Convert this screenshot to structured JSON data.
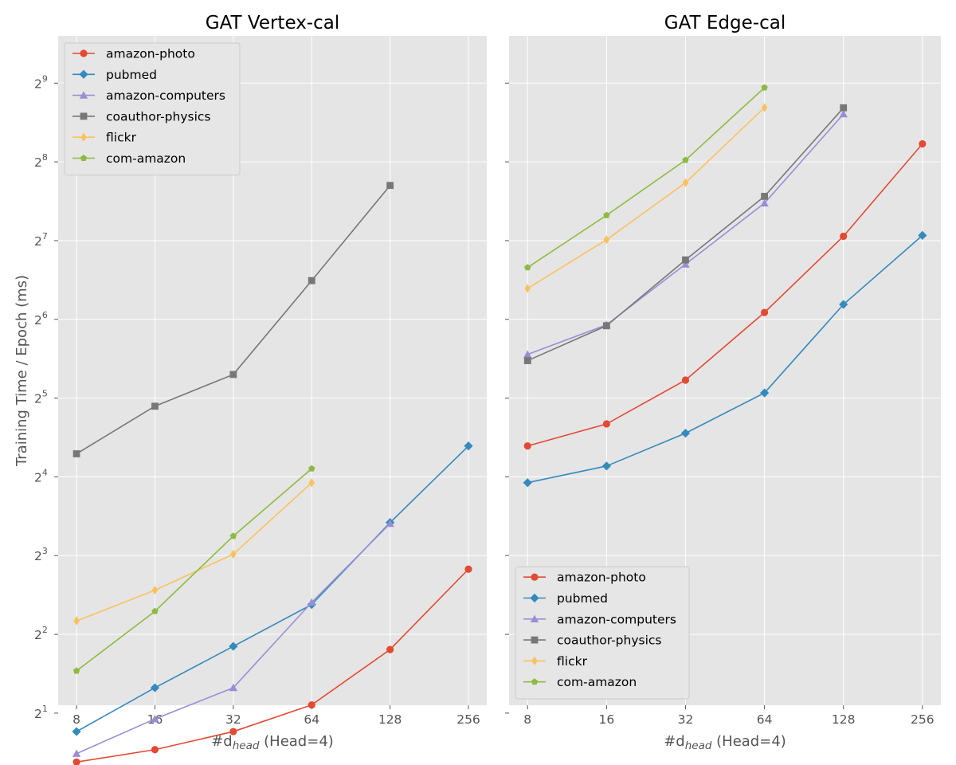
{
  "colors": {
    "figure_bg": "#ffffff",
    "axes_bg": "#e5e5e5",
    "grid": "#ffffff",
    "amazon-photo": "#e24a33",
    "pubmed": "#348abd",
    "amazon-computers": "#988ed5",
    "coauthor-physics": "#777777",
    "flickr": "#fbc15e",
    "com-amazon": "#8eba42"
  },
  "shared": {
    "ylabel": "Training Time / Epoch (ms)",
    "xlabel_main": "#d",
    "xlabel_sub": "head",
    "xlabel_suffix": " (Head=4)",
    "x_ticks": [
      8,
      16,
      32,
      64,
      128,
      256
    ],
    "y_tick_exponents": [
      1,
      2,
      3,
      4,
      5,
      6,
      7,
      8,
      9
    ],
    "y_tick_base": "2",
    "y_scale": "log2",
    "x_scale": "log2",
    "ylim": [
      1.1,
      9.6
    ],
    "xlim": [
      6.8,
      301
    ]
  },
  "chart_data": [
    {
      "type": "line",
      "title": "GAT Vertex-cal",
      "xlabel": "#d_head (Head=4)",
      "ylabel": "Training Time / Epoch (ms)",
      "legend": "upper-left",
      "grid": true,
      "series": [
        {
          "name": "amazon-photo",
          "marker": "circle",
          "x": [
            8,
            16,
            32,
            64,
            128,
            256
          ],
          "values": [
            1.3,
            1.45,
            1.7,
            2.15,
            3.5,
            7.1
          ]
        },
        {
          "name": "pubmed",
          "marker": "diamond",
          "x": [
            8,
            16,
            32,
            64,
            128,
            256
          ],
          "values": [
            1.7,
            2.5,
            3.6,
            5.2,
            10.7,
            21.0
          ]
        },
        {
          "name": "amazon-computers",
          "marker": "triangle",
          "x": [
            8,
            16,
            32,
            64,
            128
          ],
          "values": [
            1.4,
            1.9,
            2.5,
            5.3,
            10.6
          ]
        },
        {
          "name": "coauthor-physics",
          "marker": "square",
          "x": [
            8,
            16,
            32,
            64,
            128
          ],
          "values": [
            19.6,
            29.8,
            39.4,
            90.0,
            208.0
          ]
        },
        {
          "name": "flickr",
          "marker": "thin-diamond",
          "x": [
            8,
            16,
            32,
            64
          ],
          "values": [
            4.5,
            5.9,
            8.1,
            15.2
          ]
        },
        {
          "name": "com-amazon",
          "marker": "pentagon",
          "x": [
            8,
            16,
            32,
            64
          ],
          "values": [
            2.9,
            4.9,
            9.5,
            17.2
          ]
        }
      ]
    },
    {
      "type": "line",
      "title": "GAT Edge-cal",
      "xlabel": "#d_head (Head=4)",
      "ylabel": "",
      "legend": "lower-left",
      "grid": true,
      "series": [
        {
          "name": "amazon-photo",
          "marker": "circle",
          "x": [
            8,
            16,
            32,
            64,
            128,
            256
          ],
          "values": [
            21.0,
            25.5,
            37.5,
            68.0,
            133.0,
            300.0
          ]
        },
        {
          "name": "pubmed",
          "marker": "diamond",
          "x": [
            8,
            16,
            32,
            64,
            128,
            256
          ],
          "values": [
            15.2,
            17.6,
            23.5,
            33.5,
            73.0,
            134.0
          ]
        },
        {
          "name": "amazon-computers",
          "marker": "triangle",
          "x": [
            8,
            16,
            32,
            64,
            128
          ],
          "values": [
            47.0,
            61.0,
            104.0,
            178.0,
            390.0
          ]
        },
        {
          "name": "coauthor-physics",
          "marker": "square",
          "x": [
            8,
            16,
            32,
            64,
            128
          ],
          "values": [
            44.5,
            60.5,
            108.0,
            189.0,
            412.0
          ]
        },
        {
          "name": "flickr",
          "marker": "thin-diamond",
          "x": [
            8,
            16,
            32,
            64
          ],
          "values": [
            84.0,
            129.0,
            213.0,
            413.0
          ]
        },
        {
          "name": "com-amazon",
          "marker": "pentagon",
          "x": [
            8,
            16,
            32,
            64
          ],
          "values": [
            101.0,
            160.0,
            260.0,
            492.0
          ]
        }
      ]
    }
  ]
}
